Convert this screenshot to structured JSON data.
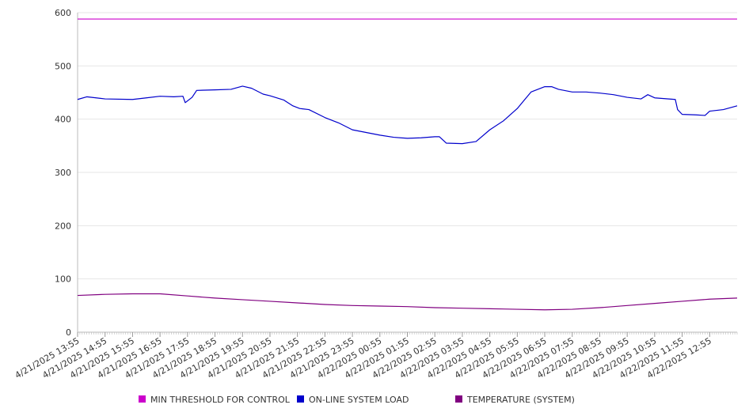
{
  "chart_data": {
    "type": "line",
    "title": "",
    "xlabel": "",
    "ylabel": "",
    "ylim": [
      0,
      600
    ],
    "yticks": [
      0,
      100,
      200,
      300,
      400,
      500,
      600
    ],
    "grid": true,
    "legend_position": "bottom",
    "categories": [
      "4/21/2025 13:55",
      "4/21/2025 14:55",
      "4/21/2025 15:55",
      "4/21/2025 16:55",
      "4/21/2025 17:55",
      "4/21/2025 18:55",
      "4/21/2025 19:55",
      "4/21/2025 20:55",
      "4/21/2025 21:55",
      "4/21/2025 22:55",
      "4/21/2025 23:55",
      "4/22/2025 00:55",
      "4/22/2025 01:55",
      "4/22/2025 02:55",
      "4/22/2025 03:55",
      "4/22/2025 04:55",
      "4/22/2025 05:55",
      "4/22/2025 06:55",
      "4/22/2025 07:55",
      "4/22/2025 08:55",
      "4/22/2025 09:55",
      "4/22/2025 10:55",
      "4/22/2025 11:55",
      "4/22/2025 12:55"
    ],
    "x_end": "4/22/2025 13:55",
    "series": [
      {
        "name": "MIN THRESHOLD FOR CONTROL",
        "color": "#cc00cc",
        "x": [
          "4/21/2025 13:55",
          "4/22/2025 13:55"
        ],
        "values": [
          588,
          588
        ]
      },
      {
        "name": "ON-LINE SYSTEM LOAD",
        "color": "#0000cc",
        "x": [
          "4/21/2025 13:55",
          "4/21/2025 14:15",
          "4/21/2025 14:55",
          "4/21/2025 15:55",
          "4/21/2025 16:25",
          "4/21/2025 16:55",
          "4/21/2025 17:25",
          "4/21/2025 17:45",
          "4/21/2025 17:50",
          "4/21/2025 18:05",
          "4/21/2025 18:15",
          "4/21/2025 18:55",
          "4/21/2025 19:30",
          "4/21/2025 19:55",
          "4/21/2025 20:15",
          "4/21/2025 20:40",
          "4/21/2025 20:55",
          "4/21/2025 21:25",
          "4/21/2025 21:45",
          "4/21/2025 22:00",
          "4/21/2025 22:20",
          "4/21/2025 22:55",
          "4/21/2025 23:25",
          "4/21/2025 23:55",
          "4/22/2025 00:25",
          "4/22/2025 00:55",
          "4/22/2025 01:25",
          "4/22/2025 01:55",
          "4/22/2025 02:25",
          "4/22/2025 02:55",
          "4/22/2025 03:05",
          "4/22/2025 03:20",
          "4/22/2025 03:55",
          "4/22/2025 04:25",
          "4/22/2025 04:55",
          "4/22/2025 05:25",
          "4/22/2025 05:55",
          "4/22/2025 06:25",
          "4/22/2025 06:55",
          "4/22/2025 07:10",
          "4/22/2025 07:25",
          "4/22/2025 07:55",
          "4/22/2025 08:25",
          "4/22/2025 08:55",
          "4/22/2025 09:25",
          "4/22/2025 09:55",
          "4/22/2025 10:25",
          "4/22/2025 10:40",
          "4/22/2025 10:55",
          "4/22/2025 11:40",
          "4/22/2025 11:45",
          "4/22/2025 11:55",
          "4/22/2025 12:25",
          "4/22/2025 12:45",
          "4/22/2025 12:55",
          "4/22/2025 13:25",
          "4/22/2025 13:55"
        ],
        "values": [
          437,
          442,
          438,
          437,
          440,
          443,
          442,
          443,
          431,
          441,
          454,
          455,
          456,
          462,
          458,
          447,
          444,
          436,
          425,
          420,
          418,
          403,
          393,
          380,
          375,
          370,
          366,
          364,
          365,
          367,
          367,
          355,
          354,
          358,
          380,
          397,
          420,
          451,
          461,
          461,
          456,
          451,
          451,
          449,
          446,
          441,
          438,
          446,
          440,
          437,
          418,
          409,
          408,
          407,
          415,
          418,
          425
        ]
      },
      {
        "name": "TEMPERATURE (SYSTEM)",
        "color": "#800080",
        "x": [
          "4/21/2025 13:55",
          "4/21/2025 14:55",
          "4/21/2025 15:55",
          "4/21/2025 16:55",
          "4/21/2025 17:55",
          "4/21/2025 18:55",
          "4/21/2025 19:55",
          "4/21/2025 20:55",
          "4/21/2025 21:55",
          "4/21/2025 22:55",
          "4/21/2025 23:55",
          "4/22/2025 00:55",
          "4/22/2025 01:55",
          "4/22/2025 02:55",
          "4/22/2025 03:55",
          "4/22/2025 04:55",
          "4/22/2025 05:55",
          "4/22/2025 06:55",
          "4/22/2025 07:55",
          "4/22/2025 08:55",
          "4/22/2025 09:55",
          "4/22/2025 10:55",
          "4/22/2025 11:55",
          "4/22/2025 12:55",
          "4/22/2025 13:55"
        ],
        "values": [
          69,
          71,
          72,
          72,
          68,
          64,
          61,
          58,
          55,
          52,
          50,
          49,
          48,
          46,
          45,
          44,
          43,
          42,
          43,
          46,
          50,
          54,
          58,
          62,
          64
        ]
      }
    ]
  }
}
